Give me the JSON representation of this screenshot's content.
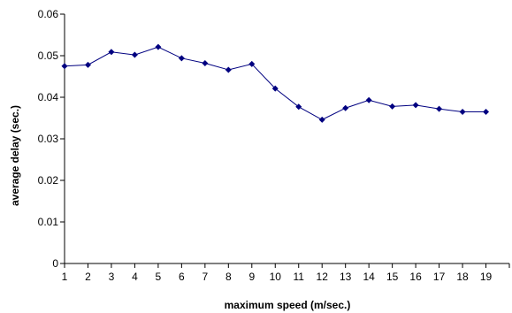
{
  "chart_data": {
    "type": "line",
    "xlabel": "maximum speed (m/sec.)",
    "ylabel": "average delay (sec.)",
    "x": [
      1,
      2,
      3,
      4,
      5,
      6,
      7,
      8,
      9,
      10,
      11,
      12,
      13,
      14,
      15,
      16,
      17,
      18,
      19
    ],
    "y_ticks": [
      "0",
      "0.01",
      "0.02",
      "0.03",
      "0.04",
      "0.05",
      "0.06"
    ],
    "ylim": [
      0,
      0.06
    ],
    "grid": false,
    "legend": "none",
    "series": [
      {
        "color": "#000080",
        "marker": "diamond",
        "values": [
          0.0475,
          0.0478,
          0.0509,
          0.0502,
          0.0521,
          0.0494,
          0.0482,
          0.0466,
          0.048,
          0.0421,
          0.0377,
          0.0346,
          0.0374,
          0.0393,
          0.0378,
          0.0381,
          0.0372,
          0.0365,
          0.0365
        ]
      }
    ]
  }
}
